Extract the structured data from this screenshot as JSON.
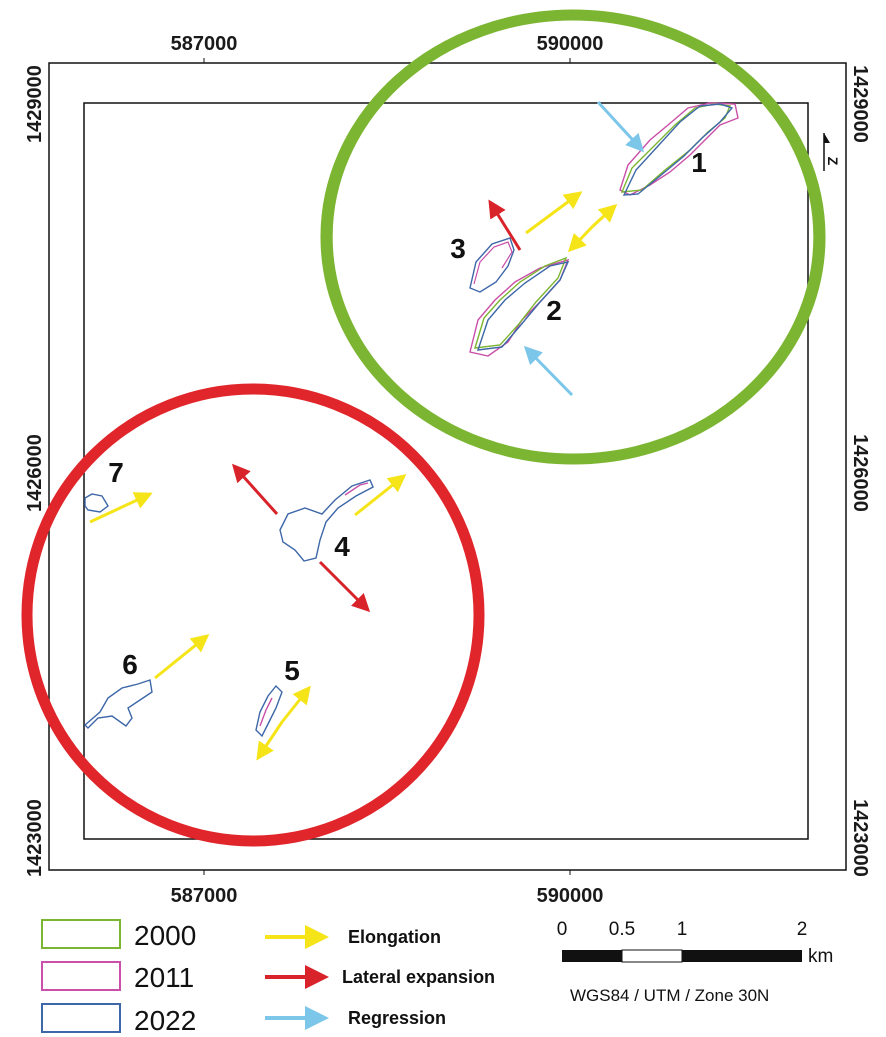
{
  "map": {
    "x_ticks": [
      "587000",
      "590000"
    ],
    "y_ticks": [
      "1429000",
      "1426000",
      "1423000"
    ],
    "feature_labels": [
      "1",
      "2",
      "3",
      "4",
      "5",
      "6",
      "7"
    ],
    "north_glyph": "Z",
    "colors": {
      "y2000": "#7cb531",
      "y2011": "#c94fa8",
      "y2022": "#3d67a8",
      "elongation": "#f5e417",
      "lateral": "#d9232a",
      "regression": "#7cc6ea",
      "green_circle": "#7cb531",
      "red_circle": "#e0262b"
    }
  },
  "legend": {
    "years": [
      "2000",
      "2011",
      "2022"
    ],
    "arrows": [
      "Elongation",
      "Lateral expansion",
      "Regression"
    ]
  },
  "scale": {
    "ticks": [
      "0",
      "0.5",
      "1",
      "2"
    ],
    "unit": "km",
    "crs": "WGS84 / UTM / Zone 30N"
  }
}
